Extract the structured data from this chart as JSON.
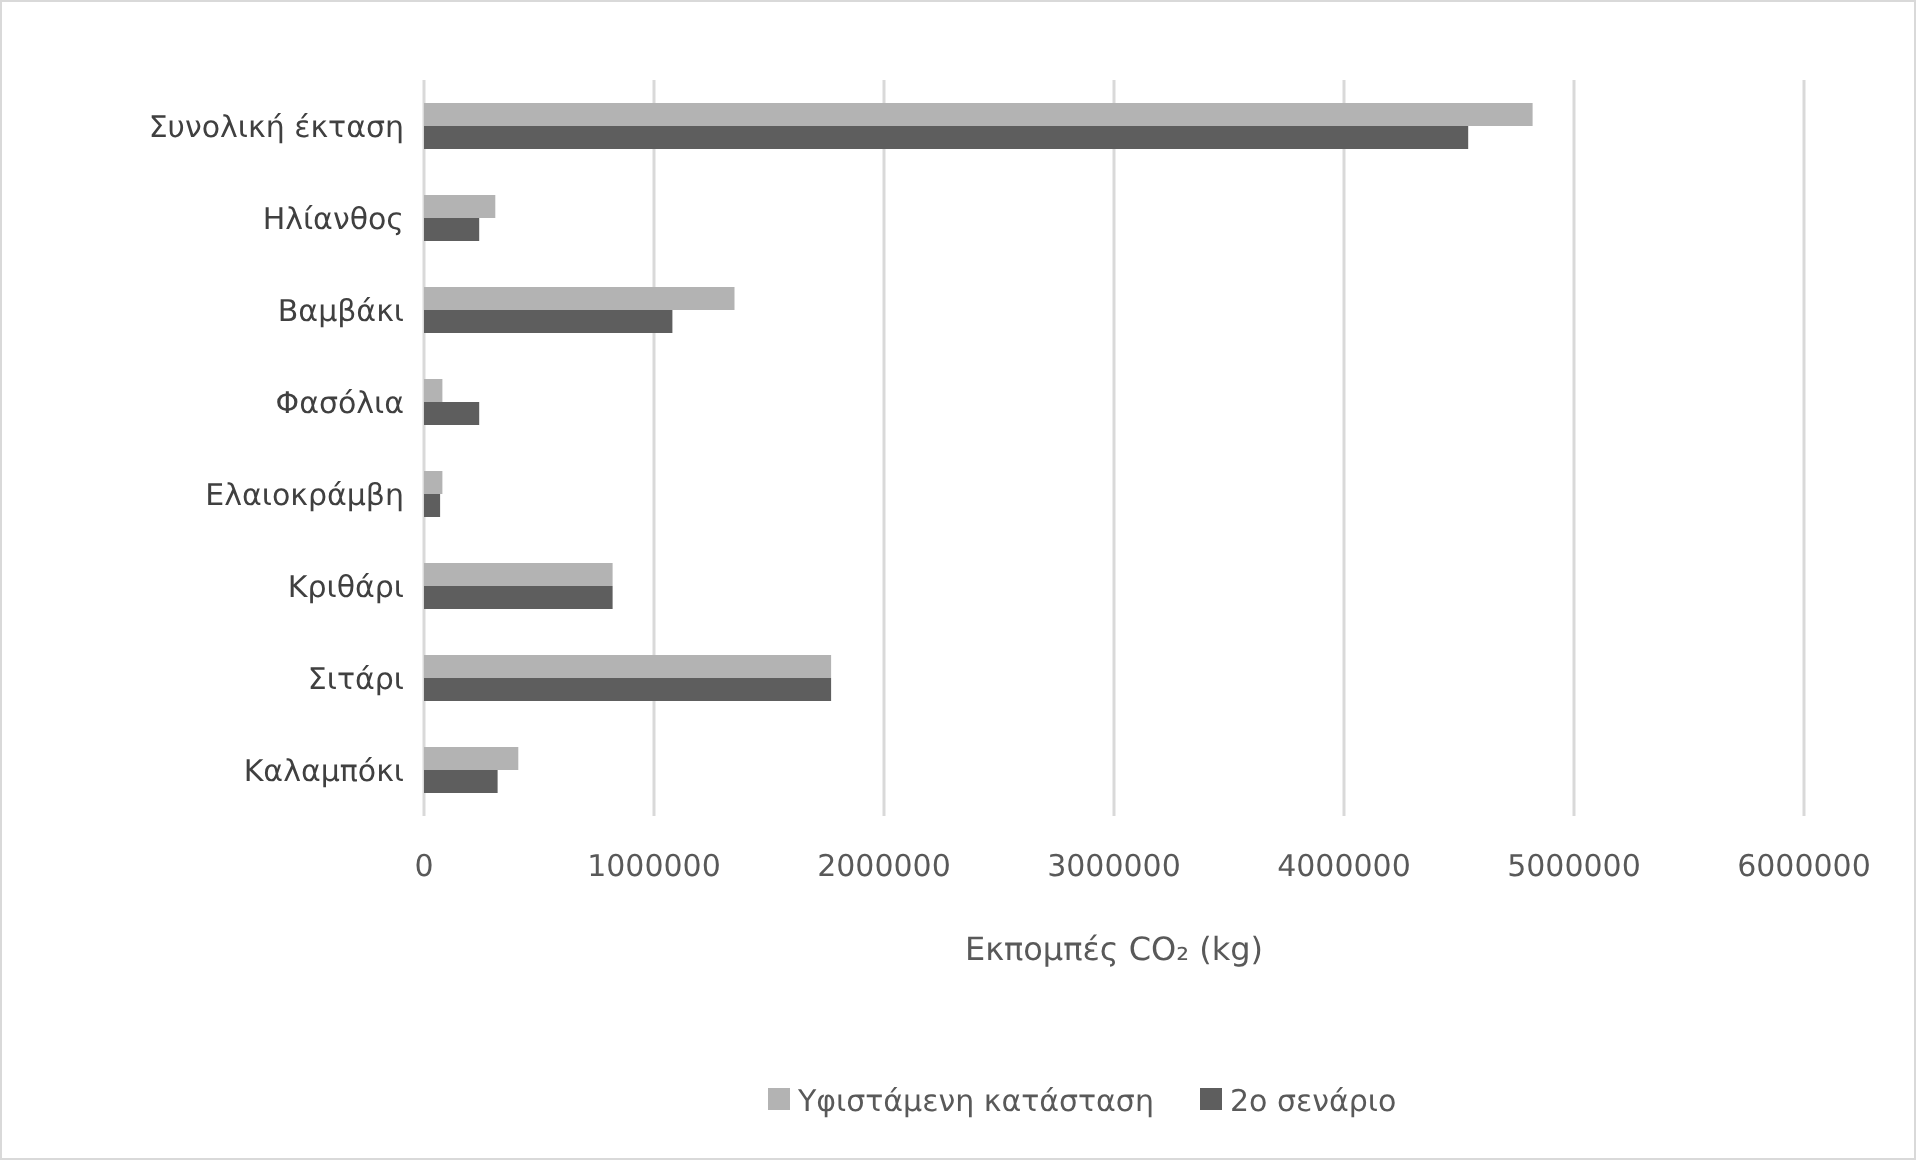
{
  "chart_data": {
    "type": "bar",
    "orientation": "horizontal",
    "xlabel": "Εκπομπές CO₂ (kg)",
    "categories": [
      "Συνολική έκταση",
      "Ηλίανθος",
      "Βαμβάκι",
      "Φασόλια",
      "Ελαιοκράμβη",
      "Κριθάρι",
      "Σιτάρι",
      "Καλαμπόκι"
    ],
    "series": [
      {
        "name": "Υφιστάμενη κατάσταση",
        "color": "#b3b3b3",
        "values": [
          4820000,
          310000,
          1350000,
          80000,
          80000,
          820000,
          1770000,
          410000
        ]
      },
      {
        "name": "2ο σενάριο",
        "color": "#5e5e5e",
        "values": [
          4540000,
          240000,
          1080000,
          240000,
          70000,
          820000,
          1770000,
          320000
        ]
      }
    ],
    "xlim": [
      0,
      6000000
    ],
    "xticks": [
      0,
      1000000,
      2000000,
      3000000,
      4000000,
      5000000,
      6000000
    ],
    "grid": "x",
    "legend": "bottom"
  }
}
